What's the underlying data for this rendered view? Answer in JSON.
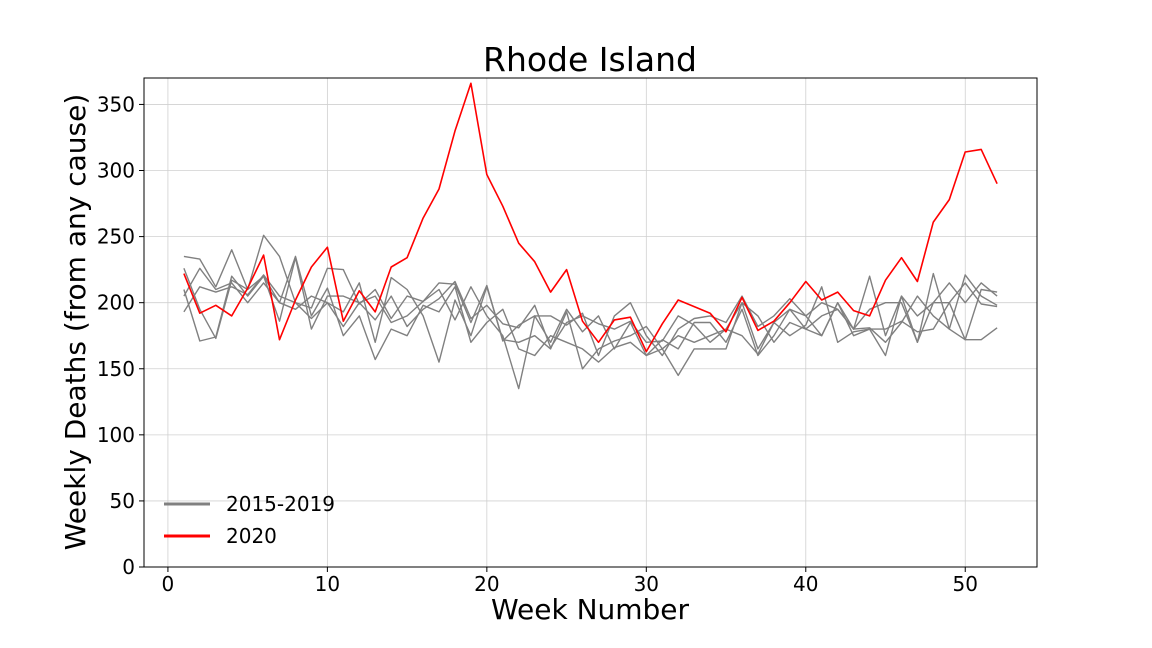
{
  "chart_data": {
    "type": "line",
    "title": "Rhode Island",
    "xlabel": "Week Number",
    "ylabel": "Weekly Deaths (from any cause)",
    "xlim": [
      -1.5,
      54.5
    ],
    "ylim": [
      0,
      370
    ],
    "xticks": [
      0,
      10,
      20,
      30,
      40,
      50
    ],
    "yticks": [
      0,
      50,
      100,
      150,
      200,
      250,
      300,
      350
    ],
    "grid": true,
    "legend": {
      "position": "lower-left",
      "entries": [
        {
          "label": "2015-2019",
          "color": "#808080"
        },
        {
          "label": "2020",
          "color": "#ff0000"
        }
      ]
    },
    "series": [
      {
        "name": "2015-2019",
        "color": "#808080",
        "y": [
          235,
          233,
          212,
          240,
          210,
          251,
          235,
          200,
          196,
          226,
          225,
          199,
          210,
          188,
          205,
          201,
          215,
          214,
          185,
          213,
          171,
          183,
          190,
          190,
          183,
          192,
          160,
          190,
          200,
          175,
          160,
          180,
          188,
          190,
          185,
          205,
          182,
          190,
          203,
          190,
          200,
          195,
          180,
          220,
          175,
          205,
          190,
          200,
          215,
          200,
          215,
          205
        ]
      },
      {
        "name": "2015-2019",
        "color": "#808080",
        "y": [
          210,
          171,
          174,
          220,
          205,
          220,
          200,
          235,
          190,
          211,
          175,
          190,
          157,
          180,
          175,
          198,
          193,
          212,
          170,
          185,
          195,
          165,
          160,
          175,
          170,
          165,
          155,
          166,
          170,
          160,
          165,
          145,
          165,
          165,
          165,
          200,
          165,
          185,
          195,
          190,
          175,
          200,
          180,
          195,
          200,
          200,
          170,
          200,
          200,
          172,
          172,
          181
        ]
      },
      {
        "name": "2015-2019",
        "color": "#808080",
        "y": [
          226,
          195,
          173,
          217,
          210,
          220,
          186,
          234,
          180,
          205,
          205,
          200,
          205,
          185,
          190,
          201,
          210,
          187,
          212,
          190,
          175,
          135,
          190,
          170,
          195,
          178,
          190,
          165,
          185,
          160,
          172,
          165,
          185,
          185,
          170,
          195,
          160,
          175,
          195,
          180,
          175,
          200,
          175,
          180,
          160,
          205,
          170,
          222,
          180,
          172,
          210,
          208
        ]
      },
      {
        "name": "2015-2019",
        "color": "#808080",
        "y": [
          205,
          226,
          210,
          215,
          200,
          215,
          200,
          195,
          205,
          200,
          193,
          215,
          170,
          219,
          210,
          190,
          155,
          202,
          175,
          212,
          172,
          170,
          175,
          165,
          193,
          150,
          165,
          171,
          175,
          182,
          165,
          175,
          170,
          175,
          180,
          200,
          190,
          170,
          185,
          180,
          190,
          195,
          180,
          181,
          170,
          185,
          205,
          190,
          180,
          221,
          205,
          198
        ]
      },
      {
        "name": "2015-2019",
        "color": "#808080",
        "y": [
          193,
          212,
          208,
          212,
          206,
          221,
          205,
          200,
          188,
          200,
          182,
          200,
          187,
          205,
          182,
          195,
          203,
          216,
          188,
          198,
          184,
          181,
          198,
          166,
          185,
          190,
          184,
          180,
          186,
          170,
          171,
          190,
          183,
          170,
          180,
          175,
          161,
          185,
          175,
          183,
          212,
          170,
          178,
          180,
          180,
          186,
          178,
          180,
          200,
          215,
          199,
          197
        ]
      },
      {
        "name": "2020",
        "color": "#ff0000",
        "y": [
          222,
          192,
          198,
          190,
          211,
          236,
          172,
          202,
          227,
          242,
          186,
          209,
          193,
          227,
          234,
          264,
          286,
          330,
          366,
          297,
          273,
          245,
          231,
          208,
          225,
          186,
          170,
          187,
          189,
          163,
          184,
          202,
          197,
          192,
          178,
          204,
          179,
          186,
          200,
          216,
          202,
          208,
          194,
          190,
          217,
          234,
          216,
          261,
          278,
          314,
          316,
          290
        ]
      }
    ]
  }
}
